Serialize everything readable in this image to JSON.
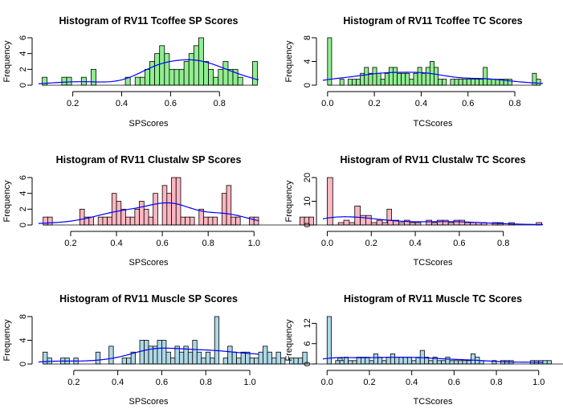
{
  "chart_data": [
    {
      "type": "bar",
      "title": "Histogram of RV11 Tcoffee  SP Scores",
      "xlabel": "SPScores",
      "ylabel": "Frequency",
      "bar_color": "#90ee90",
      "density_color": "#0000ff",
      "xlim": [
        0.06,
        0.96
      ],
      "ylim": [
        0,
        6
      ],
      "xticks": [
        0.2,
        0.4,
        0.6,
        0.8
      ],
      "yticks": [
        0,
        2,
        4,
        6
      ],
      "bin_start": 0.075,
      "bin_width": 0.02,
      "values": [
        1,
        0,
        0,
        0,
        1,
        1,
        0,
        0,
        1,
        0,
        2,
        0,
        0,
        0,
        0,
        0,
        0,
        1,
        0,
        1,
        1,
        2,
        3,
        4,
        5,
        4,
        2,
        2,
        2,
        3,
        4,
        5,
        6,
        3,
        2,
        1,
        2,
        3,
        2,
        2,
        1,
        0,
        0,
        3
      ]
    },
    {
      "type": "bar",
      "title": "Histogram of RV11 Tcoffee  TC Scores",
      "xlabel": "TCScores",
      "ylabel": "Frequency",
      "bar_color": "#90ee90",
      "density_color": "#0000ff",
      "xlim": [
        -0.02,
        0.92
      ],
      "ylim": [
        0,
        8
      ],
      "xticks": [
        0.0,
        0.2,
        0.4,
        0.6,
        0.8
      ],
      "yticks": [
        0,
        4,
        8
      ],
      "bin_start": 0.0,
      "bin_width": 0.0175,
      "values": [
        8,
        0,
        0,
        1,
        0,
        1,
        1,
        1,
        2,
        3,
        2,
        3,
        2,
        1,
        2,
        3,
        3,
        2,
        2,
        2,
        1,
        2,
        3,
        2,
        3,
        4,
        3,
        1,
        1,
        0,
        1,
        1,
        1,
        1,
        1,
        1,
        1,
        1,
        3,
        1,
        1,
        1,
        1,
        1,
        1,
        0,
        0,
        0,
        0,
        0,
        2,
        1
      ]
    },
    {
      "type": "bar",
      "title": "Histogram of RV11 Clustalw SP Scores",
      "xlabel": "SPScores",
      "ylabel": "Frequency",
      "bar_color": "#ffb6c1",
      "density_color": "#0000ff",
      "xlim": [
        0.06,
        1.02
      ],
      "ylim": [
        0,
        6
      ],
      "xticks": [
        0.2,
        0.4,
        0.6,
        0.8,
        1.0
      ],
      "yticks": [
        0,
        2,
        4,
        6
      ],
      "bin_start": 0.08,
      "bin_width": 0.02,
      "values": [
        1,
        1,
        0,
        0,
        0,
        0,
        0,
        0,
        2,
        1,
        1,
        0,
        1,
        1,
        1,
        4,
        3,
        2,
        1,
        1,
        2,
        3,
        2,
        1,
        4,
        0,
        5,
        4,
        6,
        6,
        1,
        1,
        1,
        0,
        2,
        1,
        1,
        1,
        0,
        4,
        5,
        1,
        1,
        0,
        0,
        1,
        1,
        0,
        0,
        0,
        0,
        0,
        0,
        0,
        0,
        0,
        1,
        1,
        1,
        0,
        0,
        0,
        0,
        0,
        0,
        0,
        0,
        0,
        0,
        0,
        0,
        0,
        0,
        0,
        0,
        2
      ]
    },
    {
      "type": "bar",
      "title": "Histogram of RV11 Clustalw TC Scores",
      "xlabel": "TCScores",
      "ylabel": "Frequency",
      "bar_color": "#ffb6c1",
      "density_color": "#0000ff",
      "xlim": [
        -0.02,
        0.98
      ],
      "ylim": [
        0,
        20
      ],
      "xticks": [
        0.0,
        0.2,
        0.4,
        0.6,
        0.8
      ],
      "yticks": [
        0,
        10,
        20
      ],
      "bin_start": 0.0,
      "bin_width": 0.025,
      "values": [
        20,
        0,
        1,
        2,
        1,
        8,
        4,
        4,
        1,
        2,
        1,
        2,
        2,
        1,
        2,
        1,
        1,
        0,
        2,
        1,
        2,
        2,
        1,
        2,
        2,
        1,
        1,
        1,
        1,
        0,
        1,
        1,
        0,
        1,
        0,
        0,
        0,
        0,
        1
      ]
    },
    {
      "type": "bar",
      "title": "Histogram of RV11 Muscle SP Scores",
      "xlabel": "SPScores",
      "ylabel": "Frequency",
      "bar_color": "#add8e6",
      "density_color": "#0000ff",
      "xlim": [
        0.04,
        1.04
      ],
      "ylim": [
        0,
        8
      ],
      "xticks": [
        0.2,
        0.4,
        0.6,
        0.8,
        1.0
      ],
      "yticks": [
        0,
        4,
        8
      ],
      "bin_start": 0.06,
      "bin_width": 0.02,
      "values": [
        2,
        1,
        0,
        0,
        1,
        1,
        0,
        1,
        0,
        0,
        0,
        0,
        2,
        0,
        0,
        3,
        0,
        0,
        1,
        1,
        2,
        0,
        4,
        4,
        3,
        3,
        4,
        4,
        2,
        1,
        3,
        2,
        3,
        2,
        4,
        2,
        1,
        2,
        1,
        8,
        0,
        1,
        3,
        2,
        1,
        2,
        2,
        1,
        1,
        2,
        3,
        2,
        1,
        2,
        1,
        0,
        1,
        1,
        1,
        2,
        0,
        0,
        0,
        0,
        0,
        0,
        0,
        1
      ]
    },
    {
      "type": "bar",
      "title": "Histogram of RV11 Muscle TC Scores",
      "xlabel": "TCScores",
      "ylabel": "Frequency",
      "bar_color": "#add8e6",
      "density_color": "#0000ff",
      "xlim": [
        -0.02,
        1.02
      ],
      "ylim": [
        0,
        14
      ],
      "xticks": [
        0.0,
        0.2,
        0.4,
        0.6,
        0.8,
        1.0
      ],
      "yticks": [
        0,
        6,
        12
      ],
      "bin_start": 0.0,
      "bin_width": 0.02,
      "values": [
        14,
        0,
        1,
        1,
        2,
        1,
        1,
        2,
        2,
        2,
        1,
        3,
        2,
        1,
        2,
        3,
        2,
        2,
        2,
        2,
        1,
        2,
        4,
        2,
        1,
        2,
        1,
        1,
        2,
        1,
        1,
        1,
        1,
        1,
        3,
        2,
        1,
        0,
        0,
        1,
        0,
        1,
        1,
        1,
        0,
        0,
        0,
        0,
        1,
        1,
        1,
        1,
        1,
        0,
        0,
        0,
        0,
        0,
        0,
        1
      ]
    }
  ]
}
